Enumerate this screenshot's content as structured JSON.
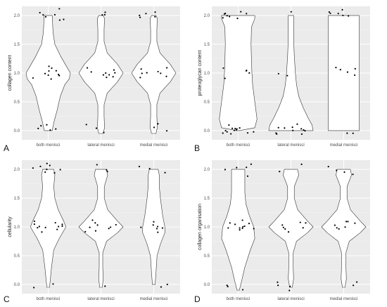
{
  "colors": {
    "panel_bg": "#ebebeb",
    "grid_major": "#ffffff",
    "grid_minor": "#f5f5f5",
    "violin_fill": "#ffffff",
    "violin_stroke": "#333333",
    "point": "#000000",
    "tick_text": "#4d4d4d"
  },
  "chart_data": [
    {
      "type": "violin",
      "panel_label": "A",
      "ylabel": "collagen content",
      "categories": [
        "both menisci",
        "lateral menisci",
        "medial menisci"
      ],
      "ylim": [
        0,
        2
      ],
      "yticks": [
        "0.0",
        "0.5",
        "1.0",
        "1.5",
        "2.0"
      ],
      "grid": true,
      "series": [
        {
          "profile": [
            [
              0,
              0.18
            ],
            [
              0.15,
              0.26
            ],
            [
              0.35,
              0.4
            ],
            [
              0.6,
              0.55
            ],
            [
              0.8,
              0.75
            ],
            [
              0.9,
              0.95
            ],
            [
              1.0,
              1.0
            ],
            [
              1.1,
              0.85
            ],
            [
              1.3,
              0.55
            ],
            [
              1.5,
              0.3
            ],
            [
              1.7,
              0.22
            ],
            [
              1.85,
              0.2
            ],
            [
              2,
              0.18
            ]
          ],
          "points": [
            0.05,
            0.03,
            0.0,
            0.1,
            0.08,
            0.98,
            1.02,
            0.95,
            1.1,
            1.05,
            0.92,
            0.9,
            1.08,
            1.0,
            0.95,
            2.0,
            1.98,
            2.05,
            1.95,
            2.02,
            1.92,
            2.1
          ]
        },
        {
          "profile": [
            [
              -0.05,
              0.1
            ],
            [
              0.05,
              0.16
            ],
            [
              0.25,
              0.14
            ],
            [
              0.45,
              0.14
            ],
            [
              0.65,
              0.28
            ],
            [
              0.85,
              0.75
            ],
            [
              1.0,
              1.0
            ],
            [
              1.15,
              0.75
            ],
            [
              1.35,
              0.28
            ],
            [
              1.55,
              0.14
            ],
            [
              1.75,
              0.14
            ],
            [
              1.95,
              0.16
            ],
            [
              2,
              0.1
            ]
          ],
          "points": [
            -0.05,
            0.1,
            0.05,
            0.95,
            1.0,
            1.05,
            1.02,
            0.98,
            1.1,
            0.93,
            1.0,
            0.97,
            2.02,
            2.05,
            2.0
          ]
        },
        {
          "profile": [
            [
              -0.05,
              0.1
            ],
            [
              0.05,
              0.16
            ],
            [
              0.25,
              0.14
            ],
            [
              0.45,
              0.14
            ],
            [
              0.65,
              0.28
            ],
            [
              0.85,
              0.75
            ],
            [
              1.0,
              1.0
            ],
            [
              1.15,
              0.75
            ],
            [
              1.35,
              0.28
            ],
            [
              1.55,
              0.14
            ],
            [
              1.75,
              0.14
            ],
            [
              1.95,
              0.16
            ],
            [
              2,
              0.1
            ]
          ],
          "points": [
            0.1,
            0.05,
            -0.02,
            0.98,
            1.05,
            1.0,
            0.95,
            1.03,
            1.1,
            0.92,
            1.0,
            1.95,
            2.0,
            2.05,
            1.98,
            2.04
          ]
        }
      ]
    },
    {
      "type": "violin",
      "panel_label": "B",
      "ylabel": "proteoglycan content",
      "categories": [
        "both menisci",
        "lateral menisci",
        "medial menisci"
      ],
      "ylim": [
        0,
        2
      ],
      "yticks": [
        "0.0",
        "0.5",
        "1.0",
        "1.5",
        "2.0"
      ],
      "grid": true,
      "series": [
        {
          "profile": [
            [
              0,
              0.05
            ],
            [
              0.05,
              0.75
            ],
            [
              0.2,
              0.85
            ],
            [
              0.5,
              0.75
            ],
            [
              0.8,
              0.65
            ],
            [
              1.0,
              0.62
            ],
            [
              1.2,
              0.6
            ],
            [
              1.5,
              0.58
            ],
            [
              1.8,
              0.6
            ],
            [
              1.95,
              0.75
            ],
            [
              2,
              0.75
            ]
          ],
          "points": [
            -0.05,
            -0.03,
            0.0,
            0.02,
            -0.04,
            0.05,
            0.03,
            -0.02,
            0.0,
            0.04,
            -0.05,
            0.1,
            0.05,
            1.0,
            1.05,
            1.1,
            0.92,
            1.02,
            1.97,
            2.0,
            2.05,
            2.02,
            1.95,
            2.08,
            2.0,
            2.04
          ]
        },
        {
          "profile": [
            [
              0,
              1.0
            ],
            [
              0.1,
              0.95
            ],
            [
              0.2,
              0.8
            ],
            [
              0.4,
              0.55
            ],
            [
              0.6,
              0.35
            ],
            [
              0.8,
              0.25
            ],
            [
              1.0,
              0.2
            ],
            [
              1.3,
              0.15
            ],
            [
              1.6,
              0.12
            ],
            [
              1.8,
              0.12
            ],
            [
              2,
              0.12
            ]
          ],
          "points": [
            0.0,
            0.05,
            -0.02,
            0.03,
            -0.05,
            0.1,
            0.02,
            -0.03,
            0.04,
            -0.05,
            0.0,
            0.98,
            0.95,
            2.05
          ]
        },
        {
          "profile": [
            [
              0,
              0.7
            ],
            [
              0.3,
              0.7
            ],
            [
              0.7,
              0.7
            ],
            [
              1.0,
              0.7
            ],
            [
              1.3,
              0.7
            ],
            [
              1.7,
              0.7
            ],
            [
              2,
              0.7
            ]
          ],
          "points": [
            -0.05,
            -0.03,
            1.0,
            1.05,
            1.1,
            0.95,
            1.08,
            2.0,
            2.05,
            2.08,
            2.02,
            2.1,
            1.98
          ]
        }
      ]
    },
    {
      "type": "violin",
      "panel_label": "C",
      "ylabel": "cellularity",
      "categories": [
        "both menisci",
        "lateral menisci",
        "medial menisci"
      ],
      "ylim": [
        0,
        2
      ],
      "yticks": [
        "0.0",
        "0.5",
        "1.0",
        "1.5",
        "2.0"
      ],
      "grid": true,
      "series": [
        {
          "profile": [
            [
              -0.05,
              0.06
            ],
            [
              0.1,
              0.1
            ],
            [
              0.3,
              0.15
            ],
            [
              0.6,
              0.25
            ],
            [
              0.8,
              0.5
            ],
            [
              1.0,
              0.8
            ],
            [
              1.1,
              0.7
            ],
            [
              1.3,
              0.45
            ],
            [
              1.5,
              0.3
            ],
            [
              1.7,
              0.25
            ],
            [
              1.9,
              0.3
            ],
            [
              2,
              0.25
            ]
          ],
          "points": [
            -0.05,
            0.0,
            0.9,
            1.0,
            1.05,
            1.08,
            1.0,
            0.95,
            1.02,
            1.1,
            0.97,
            1.05,
            1.0,
            1.95,
            2.0,
            2.05,
            1.98,
            2.08,
            2.02,
            2.1,
            1.92
          ]
        },
        {
          "profile": [
            [
              -0.05,
              0.06
            ],
            [
              0.1,
              0.1
            ],
            [
              0.3,
              0.08
            ],
            [
              0.55,
              0.08
            ],
            [
              0.75,
              0.25
            ],
            [
              0.9,
              0.75
            ],
            [
              1.0,
              1.0
            ],
            [
              1.1,
              0.75
            ],
            [
              1.3,
              0.3
            ],
            [
              1.5,
              0.15
            ],
            [
              1.7,
              0.15
            ],
            [
              1.9,
              0.3
            ],
            [
              2,
              0.25
            ]
          ],
          "points": [
            -0.05,
            0.95,
            1.0,
            1.05,
            1.08,
            0.93,
            1.0,
            1.03,
            0.98,
            1.1,
            2.0,
            1.95,
            2.08
          ]
        },
        {
          "profile": [
            [
              0,
              0.06
            ],
            [
              0.2,
              0.1
            ],
            [
              0.5,
              0.15
            ],
            [
              0.7,
              0.3
            ],
            [
              0.9,
              0.5
            ],
            [
              1.0,
              0.5
            ],
            [
              1.2,
              0.4
            ],
            [
              1.5,
              0.3
            ],
            [
              1.7,
              0.25
            ],
            [
              1.9,
              0.25
            ],
            [
              2,
              0.2
            ]
          ],
          "points": [
            -0.05,
            0.0,
            0.9,
            0.95,
            1.0,
            1.05,
            1.02,
            0.98,
            1.1,
            1.93,
            2.0,
            2.05
          ]
        }
      ]
    },
    {
      "type": "violin",
      "panel_label": "D",
      "ylabel": "collagen organisation",
      "categories": [
        "both menisci",
        "lateral menisci",
        "medial menisci"
      ],
      "ylim": [
        0,
        2
      ],
      "yticks": [
        "0.0",
        "0.5",
        "1.0",
        "1.5",
        "2.0"
      ],
      "grid": true,
      "series": [
        {
          "profile": [
            [
              -0.1,
              0.05
            ],
            [
              0.05,
              0.15
            ],
            [
              0.3,
              0.3
            ],
            [
              0.6,
              0.55
            ],
            [
              0.8,
              0.75
            ],
            [
              1.0,
              0.7
            ],
            [
              1.2,
              0.5
            ],
            [
              1.4,
              0.35
            ],
            [
              1.6,
              0.3
            ],
            [
              1.8,
              0.3
            ],
            [
              2,
              0.3
            ]
          ],
          "points": [
            -0.1,
            0.0,
            -0.05,
            0.95,
            1.0,
            1.05,
            1.08,
            0.98,
            1.02,
            1.1,
            0.93,
            1.0,
            0.97,
            1.05,
            1.9,
            2.0,
            2.05,
            2.08,
            2.03
          ]
        },
        {
          "profile": [
            [
              -0.05,
              0.06
            ],
            [
              0.1,
              0.12
            ],
            [
              0.3,
              0.1
            ],
            [
              0.55,
              0.1
            ],
            [
              0.75,
              0.25
            ],
            [
              0.9,
              0.75
            ],
            [
              1.0,
              1.0
            ],
            [
              1.1,
              0.75
            ],
            [
              1.3,
              0.3
            ],
            [
              1.5,
              0.15
            ],
            [
              1.7,
              0.15
            ],
            [
              1.9,
              0.35
            ],
            [
              2,
              0.3
            ]
          ],
          "points": [
            -0.1,
            0.0,
            -0.05,
            0.05,
            0.95,
            1.0,
            1.05,
            1.08,
            0.93,
            1.02,
            1.0,
            2.08,
            1.95
          ]
        },
        {
          "profile": [
            [
              -0.05,
              0.06
            ],
            [
              0.1,
              0.12
            ],
            [
              0.3,
              0.1
            ],
            [
              0.55,
              0.1
            ],
            [
              0.75,
              0.25
            ],
            [
              0.9,
              0.75
            ],
            [
              1.0,
              1.0
            ],
            [
              1.1,
              0.75
            ],
            [
              1.3,
              0.3
            ],
            [
              1.5,
              0.15
            ],
            [
              1.7,
              0.15
            ],
            [
              1.9,
              0.35
            ],
            [
              2,
              0.3
            ]
          ],
          "points": [
            0.05,
            0.0,
            0.95,
            1.0,
            1.05,
            1.08,
            0.98,
            1.03,
            1.1,
            1.95,
            2.0,
            2.05,
            1.92
          ]
        }
      ]
    }
  ]
}
